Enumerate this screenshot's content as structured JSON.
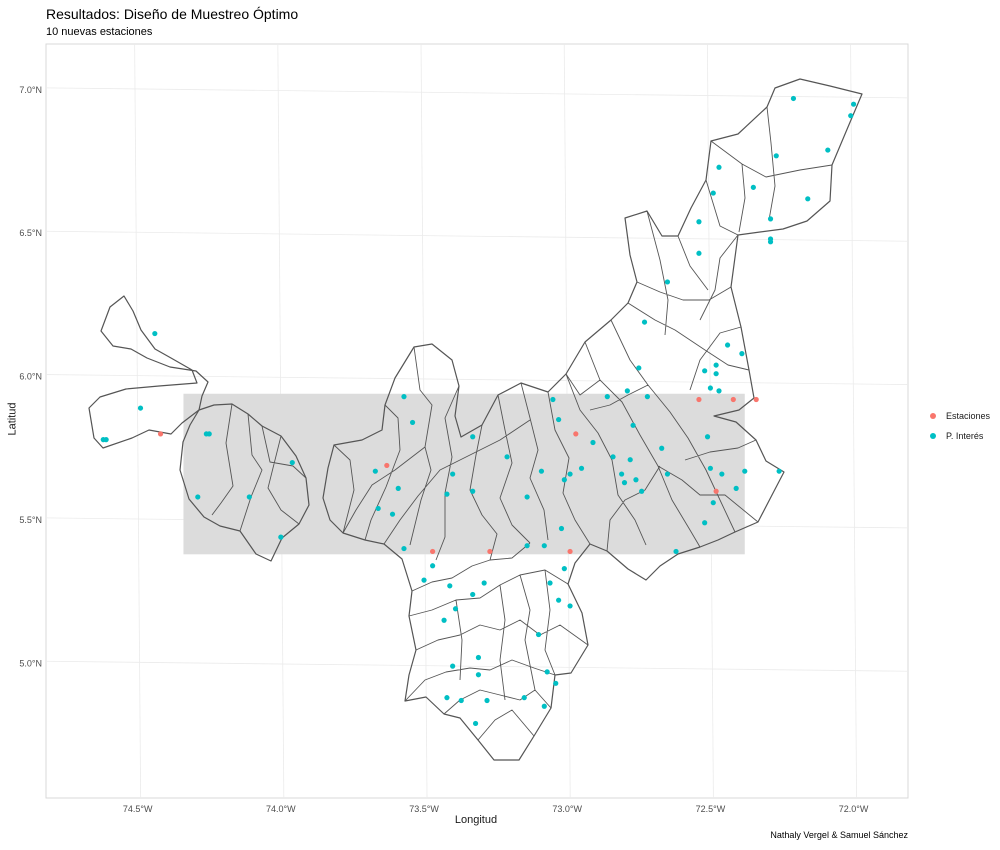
{
  "title": "Resultados: Diseño de Muestreo Óptimo",
  "subtitle": "10 nuevas estaciones",
  "caption": "Nathaly Vergel & Samuel Sánchez",
  "chart_data": {
    "type": "scatter",
    "xlabel": "Longitud",
    "ylabel": "Latitud",
    "xlim": [
      -74.82,
      -71.81
    ],
    "ylim": [
      4.53,
      7.16
    ],
    "x_ticks": [
      -74.5,
      -74.0,
      -73.5,
      -73.0,
      -72.5,
      -72.0
    ],
    "x_tick_labels": [
      "74.5°W",
      "74.0°W",
      "73.5°W",
      "73.0°W",
      "72.5°W",
      "72.0°W"
    ],
    "y_ticks": [
      5.0,
      5.5,
      6.0,
      6.5,
      7.0
    ],
    "y_tick_labels": [
      "5.0°N",
      "5.5°N",
      "6.0°N",
      "6.5°N",
      "7.0°N"
    ],
    "grid": true,
    "legend_position": "right",
    "shaded_band": {
      "lon": [
        -74.34,
        -72.38
      ],
      "lat": [
        5.38,
        5.94
      ],
      "color": "#dcdcdc"
    },
    "series": [
      {
        "name": "Estaciones",
        "color": "#F8766D",
        "points": [
          [
            -74.42,
            5.8
          ],
          [
            -73.63,
            5.69
          ],
          [
            -73.47,
            5.39
          ],
          [
            -73.27,
            5.39
          ],
          [
            -72.99,
            5.39
          ],
          [
            -72.97,
            5.8
          ],
          [
            -72.54,
            5.92
          ],
          [
            -72.42,
            5.92
          ],
          [
            -72.34,
            5.92
          ],
          [
            -72.48,
            5.6
          ]
        ]
      },
      {
        "name": "P. Interés",
        "color": "#00BFC4",
        "points": [
          [
            -74.44,
            6.15
          ],
          [
            -74.49,
            5.89
          ],
          [
            -74.61,
            5.78
          ],
          [
            -74.62,
            5.78
          ],
          [
            -74.26,
            5.8
          ],
          [
            -74.25,
            5.8
          ],
          [
            -74.29,
            5.58
          ],
          [
            -74.11,
            5.58
          ],
          [
            -73.96,
            5.7
          ],
          [
            -74.0,
            5.44
          ],
          [
            -73.67,
            5.67
          ],
          [
            -73.66,
            5.54
          ],
          [
            -73.61,
            5.52
          ],
          [
            -73.59,
            5.61
          ],
          [
            -73.54,
            5.84
          ],
          [
            -73.57,
            5.93
          ],
          [
            -73.57,
            5.4
          ],
          [
            -73.42,
            5.59
          ],
          [
            -73.4,
            5.66
          ],
          [
            -73.33,
            5.79
          ],
          [
            -73.33,
            5.6
          ],
          [
            -73.21,
            5.72
          ],
          [
            -73.14,
            5.58
          ],
          [
            -73.09,
            5.67
          ],
          [
            -73.05,
            5.92
          ],
          [
            -73.03,
            5.85
          ],
          [
            -73.01,
            5.64
          ],
          [
            -72.99,
            5.66
          ],
          [
            -73.08,
            5.41
          ],
          [
            -73.02,
            5.47
          ],
          [
            -72.95,
            5.68
          ],
          [
            -72.91,
            5.77
          ],
          [
            -72.84,
            5.72
          ],
          [
            -72.81,
            5.66
          ],
          [
            -72.8,
            5.63
          ],
          [
            -72.78,
            5.71
          ],
          [
            -72.76,
            5.64
          ],
          [
            -72.74,
            5.6
          ],
          [
            -72.77,
            5.83
          ],
          [
            -72.72,
            5.93
          ],
          [
            -72.67,
            5.75
          ],
          [
            -72.65,
            5.66
          ],
          [
            -72.62,
            5.39
          ],
          [
            -72.52,
            5.49
          ],
          [
            -72.51,
            5.79
          ],
          [
            -72.5,
            5.68
          ],
          [
            -72.49,
            5.56
          ],
          [
            -72.46,
            5.66
          ],
          [
            -72.41,
            5.61
          ],
          [
            -72.38,
            5.67
          ],
          [
            -72.26,
            5.67
          ],
          [
            -72.39,
            6.08
          ],
          [
            -72.44,
            6.11
          ],
          [
            -72.48,
            6.04
          ],
          [
            -72.48,
            6.01
          ],
          [
            -72.52,
            6.02
          ],
          [
            -72.5,
            5.96
          ],
          [
            -72.47,
            5.95
          ],
          [
            -72.54,
            6.43
          ],
          [
            -72.54,
            6.54
          ],
          [
            -72.49,
            6.64
          ],
          [
            -72.47,
            6.73
          ],
          [
            -72.35,
            6.66
          ],
          [
            -72.29,
            6.55
          ],
          [
            -72.29,
            6.48
          ],
          [
            -72.29,
            6.47
          ],
          [
            -72.27,
            6.77
          ],
          [
            -72.16,
            6.62
          ],
          [
            -72.09,
            6.79
          ],
          [
            -72.01,
            6.91
          ],
          [
            -72.0,
            6.95
          ],
          [
            -72.21,
            6.97
          ],
          [
            -72.65,
            6.33
          ],
          [
            -72.73,
            6.19
          ],
          [
            -72.75,
            6.03
          ],
          [
            -72.79,
            5.95
          ],
          [
            -72.86,
            5.93
          ],
          [
            -73.14,
            5.41
          ],
          [
            -73.5,
            5.29
          ],
          [
            -73.47,
            5.34
          ],
          [
            -73.41,
            5.27
          ],
          [
            -73.43,
            5.15
          ],
          [
            -73.39,
            5.19
          ],
          [
            -73.33,
            5.24
          ],
          [
            -73.29,
            5.28
          ],
          [
            -73.06,
            5.28
          ],
          [
            -73.01,
            5.33
          ],
          [
            -73.03,
            5.22
          ],
          [
            -72.99,
            5.2
          ],
          [
            -73.1,
            5.1
          ],
          [
            -73.07,
            4.97
          ],
          [
            -73.04,
            4.93
          ],
          [
            -73.08,
            4.85
          ],
          [
            -73.15,
            4.88
          ],
          [
            -73.28,
            4.87
          ],
          [
            -73.32,
            4.79
          ],
          [
            -73.31,
            4.96
          ],
          [
            -73.31,
            5.02
          ],
          [
            -73.4,
            4.99
          ],
          [
            -73.37,
            4.87
          ],
          [
            -73.42,
            4.88
          ]
        ]
      }
    ]
  }
}
